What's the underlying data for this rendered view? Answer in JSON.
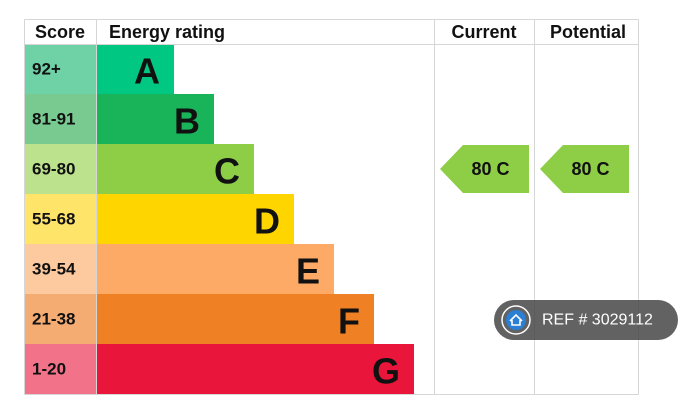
{
  "header": {
    "score": "Score",
    "rating": "Energy rating",
    "current": "Current",
    "potential": "Potential"
  },
  "bands": [
    {
      "score": "92+",
      "letter": "A",
      "color": "#00c781",
      "light": "#6fd1a6"
    },
    {
      "score": "81-91",
      "letter": "B",
      "color": "#19b459",
      "light": "#78ca90"
    },
    {
      "score": "69-80",
      "letter": "C",
      "color": "#8dce46",
      "light": "#bde28e"
    },
    {
      "score": "55-68",
      "letter": "D",
      "color": "#ffd500",
      "light": "#ffe46a"
    },
    {
      "score": "39-54",
      "letter": "E",
      "color": "#fcaa65",
      "light": "#fdcaa0"
    },
    {
      "score": "21-38",
      "letter": "F",
      "color": "#ef8023",
      "light": "#f5ac72"
    },
    {
      "score": "1-20",
      "letter": "G",
      "color": "#e9153b",
      "light": "#f2728a"
    }
  ],
  "current": "80 C",
  "potential": "80 C",
  "ref": "REF # 3029112"
}
